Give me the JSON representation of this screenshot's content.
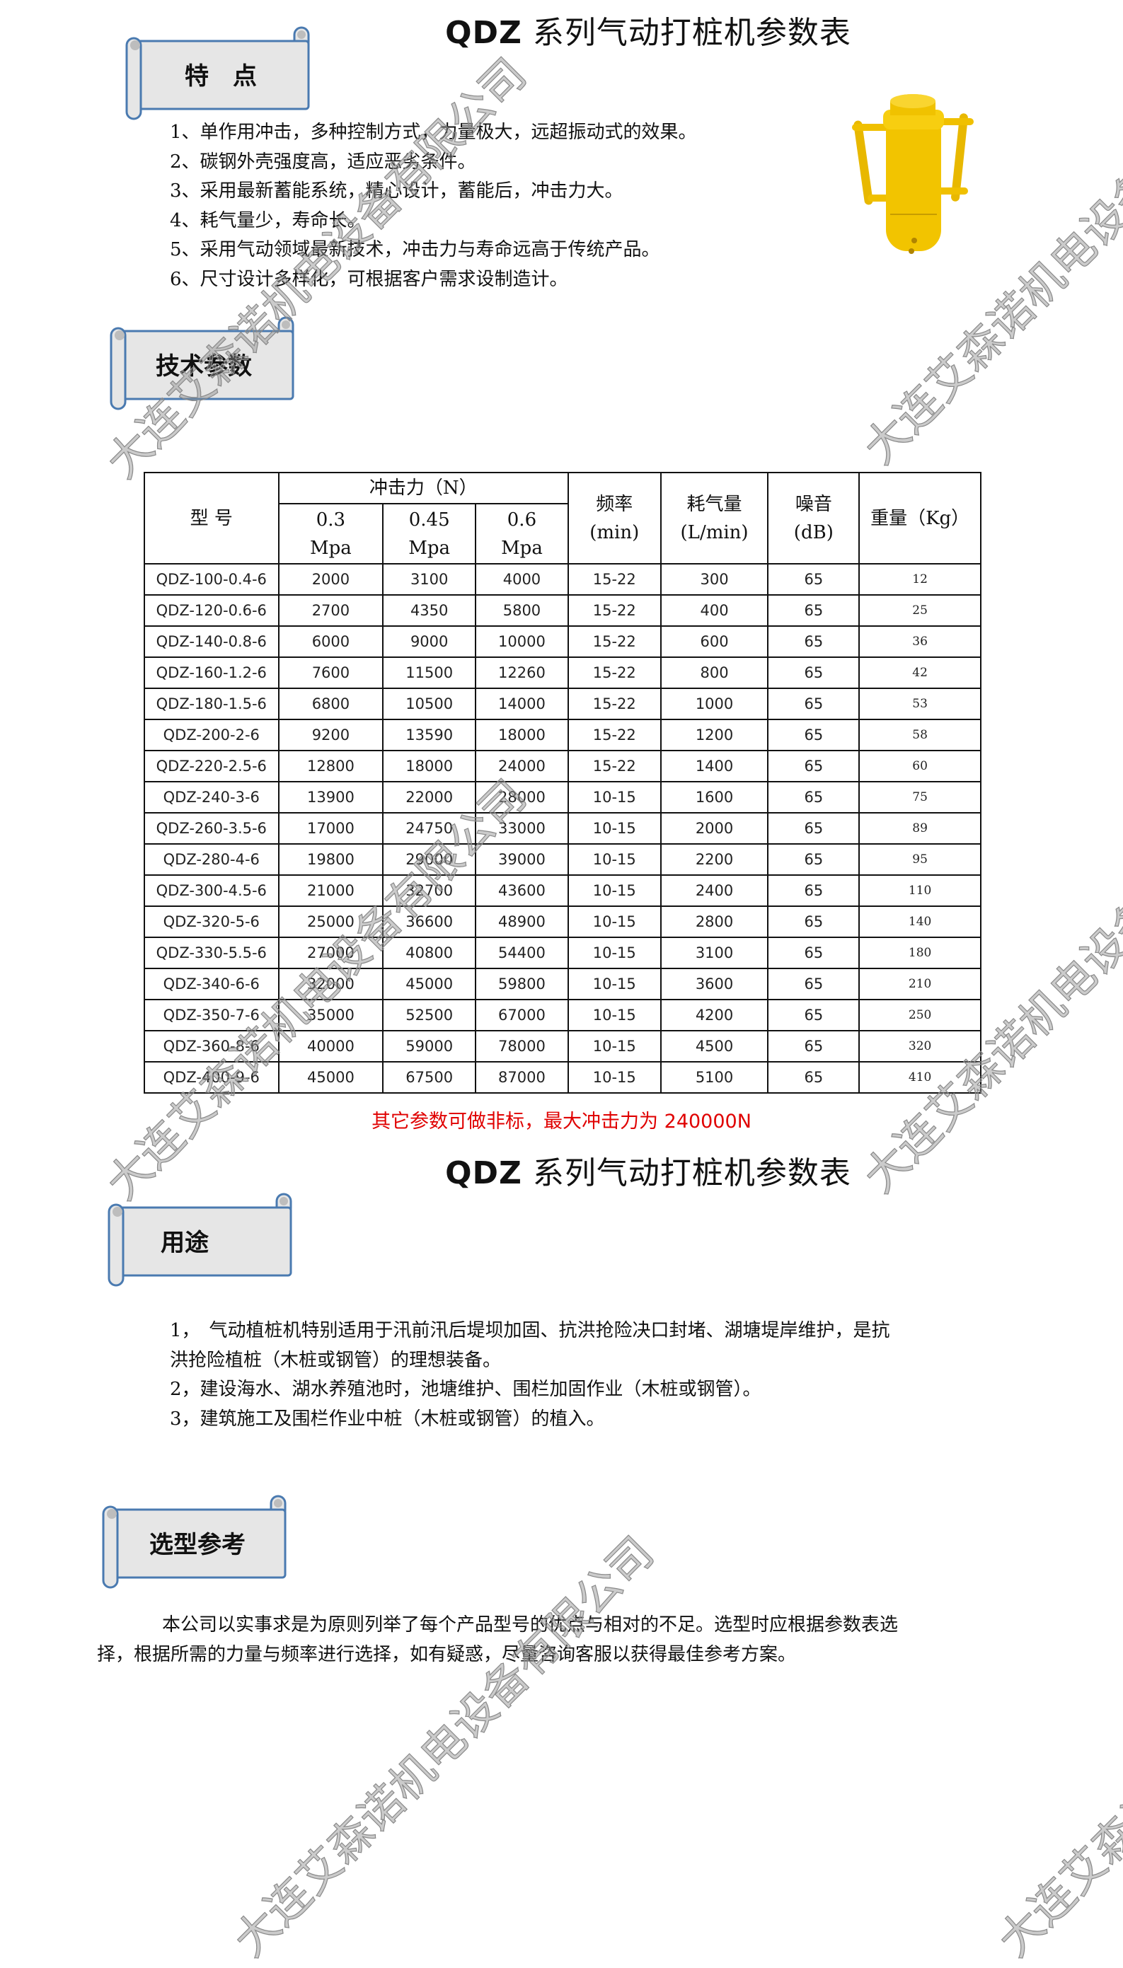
{
  "title": {
    "latin": "QDZ",
    "text": "系列气动打桩机参数表"
  },
  "watermark": "大连艾森诺机电设备有限公司",
  "features": {
    "heading": "特　点",
    "items": [
      "1、单作用冲击，多种控制方式，力量极大，远超振动式的效果。",
      "2、碳钢外壳强度高，适应恶劣条件。",
      "3、采用最新蓄能系统，精心设计，蓄能后，冲击力大。",
      "4、耗气量少，寿命长。",
      "5、采用气动领域最新技术，冲击力与寿命远高于传统产品。",
      "6、尺寸设计多样化，可根据客户需求设制造计。"
    ]
  },
  "specs": {
    "heading": "技术参数",
    "headers": {
      "model": "型 号",
      "impact": "冲击力（N）",
      "p1": "0.3",
      "p2": "0.45",
      "p3": "0.6",
      "unit": "Mpa",
      "freq": "频率",
      "freq_unit": "(min)",
      "air": "耗气量",
      "air_unit": "(L/min)",
      "noise": "噪音",
      "noise_unit": "(dB)",
      "weight": "重量（Kg）"
    },
    "rows": [
      [
        "QDZ-100-0.4-6",
        "2000",
        "3100",
        "4000",
        "15-22",
        "300",
        "65",
        "12"
      ],
      [
        "QDZ-120-0.6-6",
        "2700",
        "4350",
        "5800",
        "15-22",
        "400",
        "65",
        "25"
      ],
      [
        "QDZ-140-0.8-6",
        "6000",
        "9000",
        "10000",
        "15-22",
        "600",
        "65",
        "36"
      ],
      [
        "QDZ-160-1.2-6",
        "7600",
        "11500",
        "12260",
        "15-22",
        "800",
        "65",
        "42"
      ],
      [
        "QDZ-180-1.5-6",
        "6800",
        "10500",
        "14000",
        "15-22",
        "1000",
        "65",
        "53"
      ],
      [
        "QDZ-200-2-6",
        "9200",
        "13590",
        "18000",
        "15-22",
        "1200",
        "65",
        "58"
      ],
      [
        "QDZ-220-2.5-6",
        "12800",
        "18000",
        "24000",
        "15-22",
        "1400",
        "65",
        "60"
      ],
      [
        "QDZ-240-3-6",
        "13900",
        "22000",
        "28000",
        "10-15",
        "1600",
        "65",
        "75"
      ],
      [
        "QDZ-260-3.5-6",
        "17000",
        "24750",
        "33000",
        "10-15",
        "2000",
        "65",
        "89"
      ],
      [
        "QDZ-280-4-6",
        "19800",
        "29000",
        "39000",
        "10-15",
        "2200",
        "65",
        "95"
      ],
      [
        "QDZ-300-4.5-6",
        "21000",
        "32700",
        "43600",
        "10-15",
        "2400",
        "65",
        "110"
      ],
      [
        "QDZ-320-5-6",
        "25000",
        "36600",
        "48900",
        "10-15",
        "2800",
        "65",
        "140"
      ],
      [
        "QDZ-330-5.5-6",
        "27000",
        "40800",
        "54400",
        "10-15",
        "3100",
        "65",
        "180"
      ],
      [
        "QDZ-340-6-6",
        "32000",
        "45000",
        "59800",
        "10-15",
        "3600",
        "65",
        "210"
      ],
      [
        "QDZ-350-7-6",
        "35000",
        "52500",
        "67000",
        "10-15",
        "4200",
        "65",
        "250"
      ],
      [
        "QDZ-360-8-6",
        "40000",
        "59000",
        "78000",
        "10-15",
        "4500",
        "65",
        "320"
      ],
      [
        "QDZ-400-9-6",
        "45000",
        "67500",
        "87000",
        "10-15",
        "5100",
        "65",
        "410"
      ]
    ],
    "note": "其它参数可做非标，最大冲击力为 240000N",
    "note_color": "#e00000"
  },
  "usage": {
    "heading": "用途",
    "lines": [
      "1，　气动植桩机特别适用于汛前汛后堤坝加固、抗洪抢险决口封堵、湖塘堤岸维护，是抗",
      "洪抢险植桩（木桩或钢管）的理想装备。",
      "2，建设海水、湖水养殖池时，池塘维护、围栏加固作业（木桩或钢管）。",
      "3，建筑施工及围栏作业中桩（木桩或钢管）的植入。"
    ]
  },
  "selection": {
    "heading": "选型参考",
    "lines": [
      "本公司以实事求是为原则列举了每个产品型号的优点与相对的不足。选型时应根据参数表选",
      "择，根据所需的力量与频率进行选择，如有疑惑，尽量咨询客服以获得最佳参考方案。"
    ]
  },
  "colors": {
    "banner_stroke": "#4a7ab0",
    "banner_fill": "#e6e6e6",
    "product_yellow": "#f2c400"
  }
}
